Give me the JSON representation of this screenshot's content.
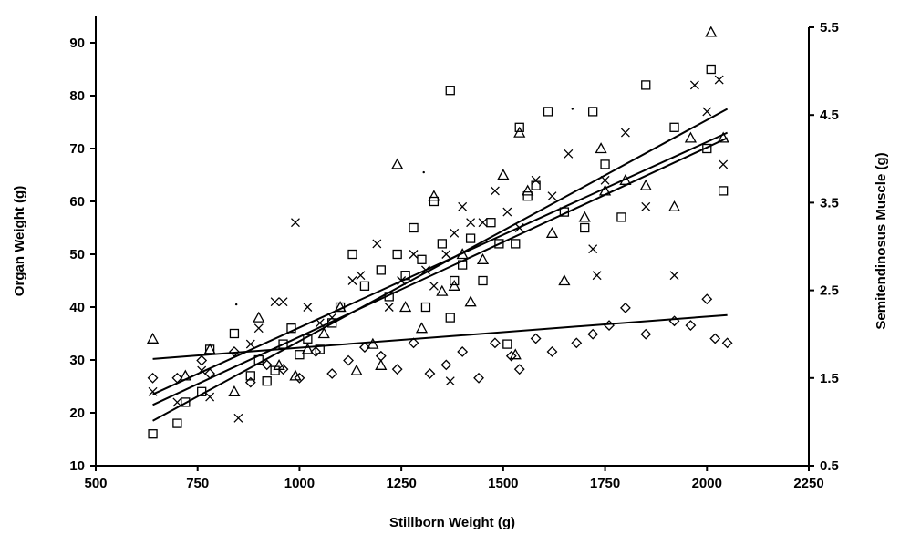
{
  "chart_data": {
    "type": "scatter",
    "title": "",
    "xlabel": "Stillborn Weight (g)",
    "ylabel": "Organ Weight (g)",
    "y2label": "Semitendinosus Muscle (g)",
    "xlim": [
      500,
      2250
    ],
    "ylim": [
      10,
      95
    ],
    "y2lim": [
      0.5,
      5.5
    ],
    "x_ticks": [
      500,
      750,
      1000,
      1250,
      1500,
      1750,
      2000,
      2250
    ],
    "x_tick_labels": [
      "500",
      "750",
      "1000",
      "1250",
      "1500",
      "1750",
      "2000",
      "2250"
    ],
    "y_ticks": [
      10,
      20,
      30,
      40,
      50,
      60,
      70,
      80,
      90
    ],
    "y_tick_labels": [
      "10",
      "20",
      "30",
      "40",
      "50",
      "60",
      "70",
      "80",
      "90"
    ],
    "y2_ticks": [
      0.5,
      1.5,
      2.5,
      3.5,
      4.5,
      5.5
    ],
    "y2_tick_labels": [
      "0.5",
      "1.5",
      "2.5",
      "3.5",
      "4.5",
      "5.5"
    ],
    "grid": false,
    "legend": "none",
    "series": [
      {
        "marker": "square",
        "points": [
          [
            640,
            16
          ],
          [
            700,
            18
          ],
          [
            720,
            22
          ],
          [
            760,
            24
          ],
          [
            780,
            32
          ],
          [
            840,
            35
          ],
          [
            880,
            27
          ],
          [
            900,
            30
          ],
          [
            920,
            26
          ],
          [
            940,
            28
          ],
          [
            960,
            33
          ],
          [
            980,
            36
          ],
          [
            1000,
            31
          ],
          [
            1020,
            34
          ],
          [
            1050,
            32
          ],
          [
            1080,
            37
          ],
          [
            1100,
            40
          ],
          [
            1130,
            50
          ],
          [
            1160,
            44
          ],
          [
            1200,
            47
          ],
          [
            1220,
            42
          ],
          [
            1240,
            50
          ],
          [
            1260,
            46
          ],
          [
            1280,
            55
          ],
          [
            1300,
            49
          ],
          [
            1310,
            40
          ],
          [
            1330,
            60
          ],
          [
            1350,
            52
          ],
          [
            1370,
            81
          ],
          [
            1370,
            38
          ],
          [
            1380,
            45
          ],
          [
            1400,
            48
          ],
          [
            1420,
            53
          ],
          [
            1450,
            45
          ],
          [
            1470,
            56
          ],
          [
            1490,
            52
          ],
          [
            1510,
            33
          ],
          [
            1530,
            52
          ],
          [
            1540,
            74
          ],
          [
            1560,
            61
          ],
          [
            1580,
            63
          ],
          [
            1610,
            77
          ],
          [
            1650,
            58
          ],
          [
            1700,
            55
          ],
          [
            1720,
            77
          ],
          [
            1750,
            67
          ],
          [
            1790,
            57
          ],
          [
            1850,
            82
          ],
          [
            1920,
            74
          ],
          [
            2000,
            70
          ],
          [
            2010,
            85
          ],
          [
            2040,
            62
          ]
        ]
      },
      {
        "marker": "triangle",
        "points": [
          [
            640,
            34
          ],
          [
            720,
            27
          ],
          [
            780,
            32
          ],
          [
            840,
            24
          ],
          [
            900,
            38
          ],
          [
            950,
            29
          ],
          [
            990,
            27
          ],
          [
            1020,
            32
          ],
          [
            1060,
            35
          ],
          [
            1100,
            40
          ],
          [
            1140,
            28
          ],
          [
            1180,
            33
          ],
          [
            1200,
            29
          ],
          [
            1240,
            67
          ],
          [
            1260,
            40
          ],
          [
            1300,
            36
          ],
          [
            1330,
            61
          ],
          [
            1350,
            43
          ],
          [
            1380,
            44
          ],
          [
            1400,
            50
          ],
          [
            1420,
            41
          ],
          [
            1450,
            49
          ],
          [
            1500,
            65
          ],
          [
            1530,
            31
          ],
          [
            1540,
            73
          ],
          [
            1560,
            62
          ],
          [
            1620,
            54
          ],
          [
            1650,
            45
          ],
          [
            1700,
            57
          ],
          [
            1740,
            70
          ],
          [
            1750,
            62
          ],
          [
            1800,
            64
          ],
          [
            1850,
            63
          ],
          [
            1920,
            59
          ],
          [
            1960,
            72
          ],
          [
            2010,
            92
          ],
          [
            2040,
            72
          ]
        ]
      },
      {
        "marker": "x",
        "points": [
          [
            640,
            24
          ],
          [
            700,
            22
          ],
          [
            760,
            28
          ],
          [
            780,
            23
          ],
          [
            850,
            19
          ],
          [
            880,
            33
          ],
          [
            900,
            36
          ],
          [
            940,
            41
          ],
          [
            960,
            41
          ],
          [
            990,
            56
          ],
          [
            1020,
            40
          ],
          [
            1050,
            37
          ],
          [
            1080,
            38
          ],
          [
            1130,
            45
          ],
          [
            1150,
            46
          ],
          [
            1190,
            52
          ],
          [
            1220,
            40
          ],
          [
            1250,
            45
          ],
          [
            1280,
            50
          ],
          [
            1310,
            47
          ],
          [
            1330,
            44
          ],
          [
            1360,
            50
          ],
          [
            1370,
            26
          ],
          [
            1380,
            54
          ],
          [
            1400,
            59
          ],
          [
            1420,
            56
          ],
          [
            1450,
            56
          ],
          [
            1480,
            62
          ],
          [
            1510,
            58
          ],
          [
            1540,
            55
          ],
          [
            1580,
            64
          ],
          [
            1620,
            61
          ],
          [
            1660,
            69
          ],
          [
            1720,
            51
          ],
          [
            1730,
            46
          ],
          [
            1750,
            64
          ],
          [
            1800,
            73
          ],
          [
            1850,
            59
          ],
          [
            1920,
            46
          ],
          [
            1970,
            82
          ],
          [
            2000,
            77
          ],
          [
            2030,
            83
          ],
          [
            2040,
            67
          ]
        ]
      },
      {
        "marker": "diamond",
        "y_axis": "right",
        "points": [
          [
            640,
            1.5
          ],
          [
            700,
            1.5
          ],
          [
            760,
            1.7
          ],
          [
            780,
            1.55
          ],
          [
            840,
            1.8
          ],
          [
            880,
            1.45
          ],
          [
            920,
            1.65
          ],
          [
            960,
            1.6
          ],
          [
            1000,
            1.5
          ],
          [
            1040,
            1.8
          ],
          [
            1080,
            1.55
          ],
          [
            1120,
            1.7
          ],
          [
            1160,
            1.85
          ],
          [
            1200,
            1.75
          ],
          [
            1240,
            1.6
          ],
          [
            1280,
            1.9
          ],
          [
            1320,
            1.55
          ],
          [
            1360,
            1.65
          ],
          [
            1400,
            1.8
          ],
          [
            1440,
            1.5
          ],
          [
            1480,
            1.9
          ],
          [
            1520,
            1.75
          ],
          [
            1540,
            1.6
          ],
          [
            1580,
            1.95
          ],
          [
            1620,
            1.8
          ],
          [
            1680,
            1.9
          ],
          [
            1720,
            2.0
          ],
          [
            1760,
            2.1
          ],
          [
            1800,
            2.3
          ],
          [
            1850,
            2.0
          ],
          [
            1920,
            2.15
          ],
          [
            1960,
            2.1
          ],
          [
            2000,
            2.4
          ],
          [
            2020,
            1.95
          ],
          [
            2050,
            1.9
          ]
        ]
      }
    ],
    "trendlines": [
      {
        "x": [
          640,
          2050
        ],
        "y": [
          30.2,
          38.5
        ]
      },
      {
        "x": [
          640,
          2050
        ],
        "y": [
          18.5,
          77.5
        ]
      },
      {
        "x": [
          640,
          2050
        ],
        "y": [
          21.5,
          72.0
        ]
      },
      {
        "x": [
          640,
          2050
        ],
        "y": [
          23.5,
          73.0
        ]
      }
    ],
    "stray_dots": [
      [
        845,
        40.5
      ],
      [
        1305,
        65.5
      ],
      [
        1670,
        77.5
      ]
    ]
  }
}
